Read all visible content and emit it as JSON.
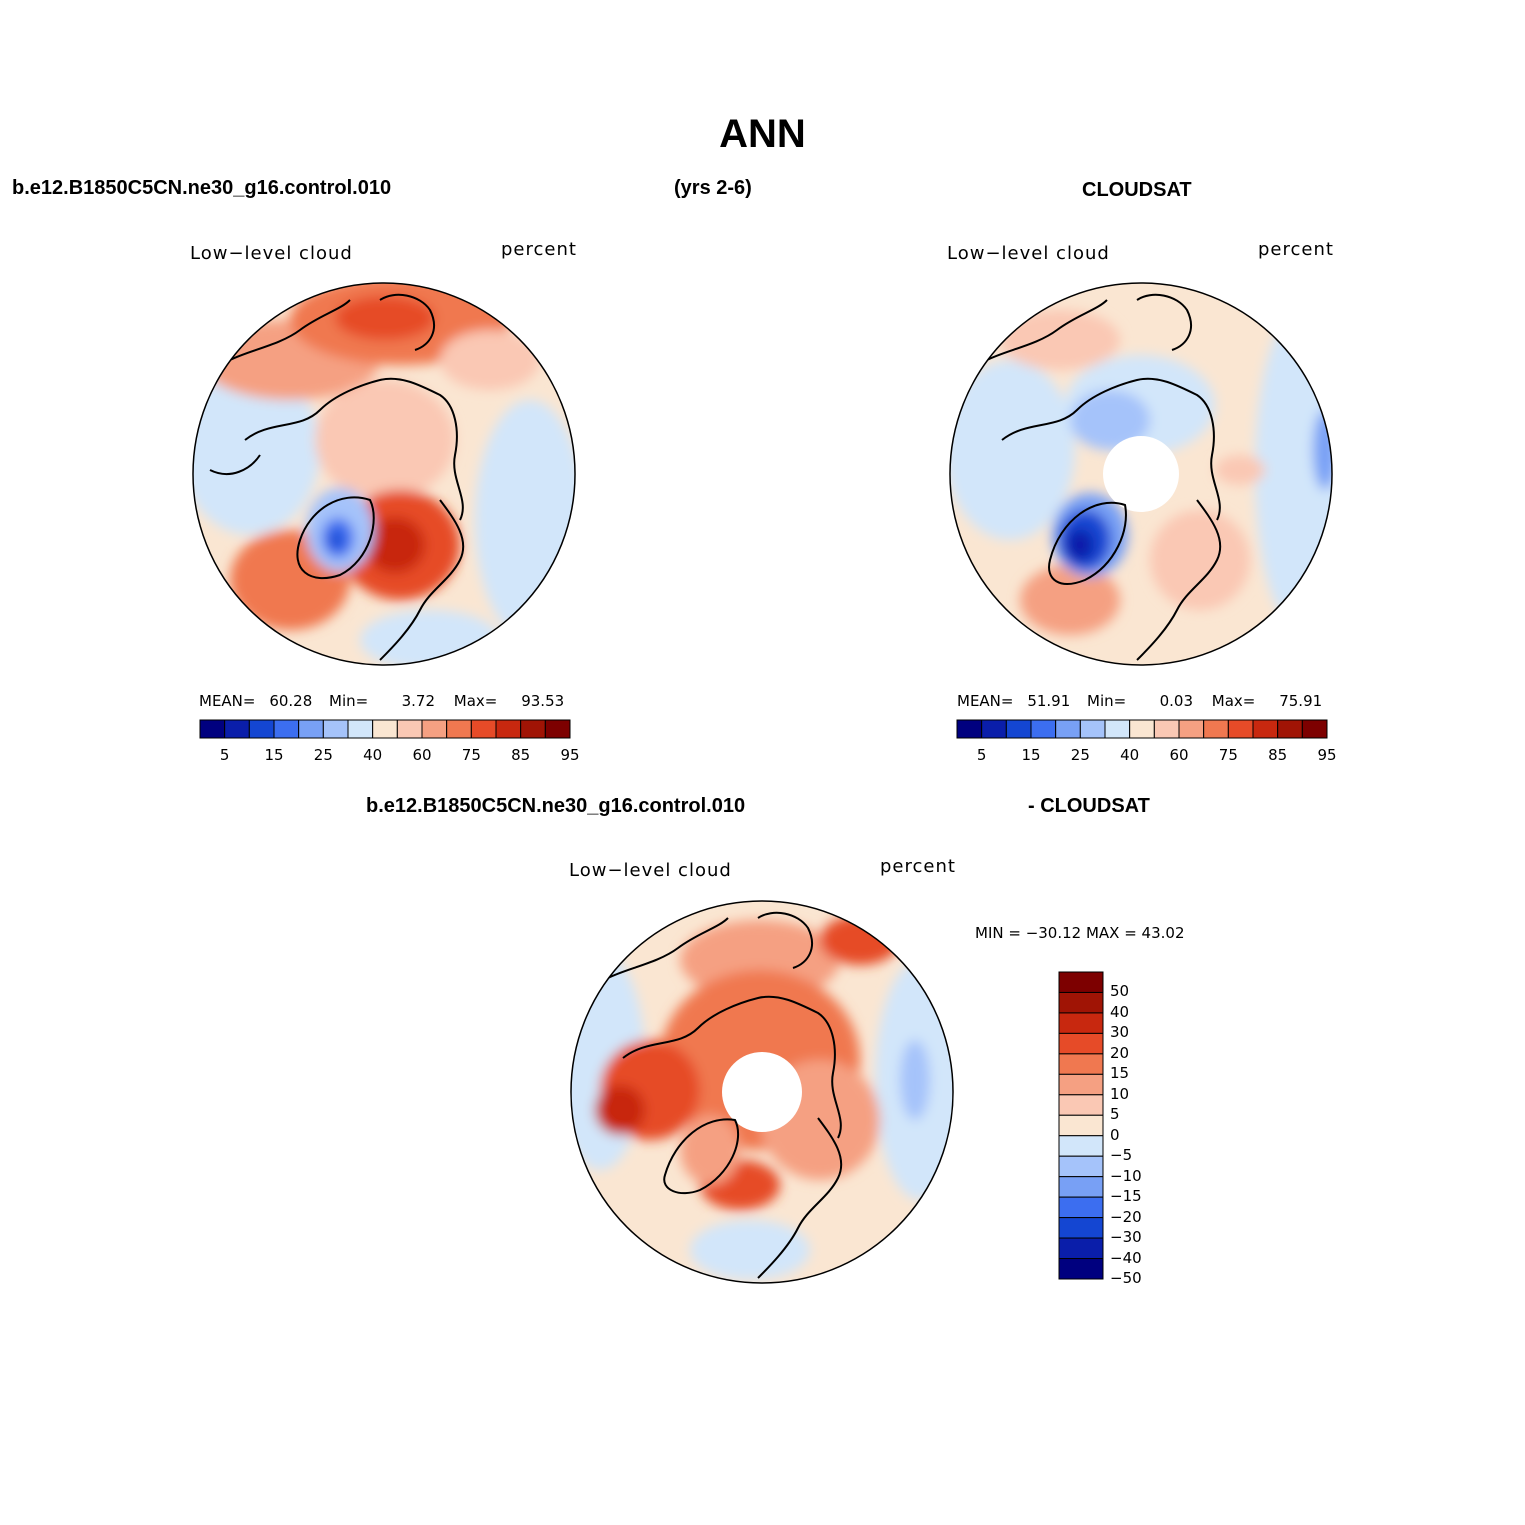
{
  "title": "ANN",
  "headers": {
    "top_left": "b.e12.B1850C5CN.ne30_g16.control.010",
    "top_center": "(yrs 2-6)",
    "top_right": "CLOUDSAT",
    "bottom_left": "b.e12.B1850C5CN.ne30_g16.control.010",
    "bottom_right": "- CLOUDSAT"
  },
  "panels": {
    "model": {
      "variable": "Low−level cloud",
      "units": "percent",
      "mean_label": "MEAN=",
      "mean": "60.28",
      "min_label": "Min=",
      "min": "3.72",
      "max_label": "Max=",
      "max": "93.53"
    },
    "obs": {
      "variable": "Low−level cloud",
      "units": "percent",
      "mean_label": "MEAN=",
      "mean": "51.91",
      "min_label": "Min=",
      "min": "0.03",
      "max_label": "Max=",
      "max": "75.91"
    },
    "diff": {
      "variable": "Low−level cloud",
      "units": "percent",
      "minmax": "MIN = −30.12 MAX =  43.02"
    }
  },
  "horizontal_colorbar": {
    "colors": [
      "#00007f",
      "#0a1eaa",
      "#1446d2",
      "#3c6ef0",
      "#78a0f5",
      "#a5c3fa",
      "#d2e6fa",
      "#fae6d2",
      "#fac8b4",
      "#f5a082",
      "#f07850",
      "#e64b28",
      "#c8280f",
      "#a01405",
      "#7d0000"
    ],
    "tick_labels": [
      "5",
      "15",
      "25",
      "40",
      "60",
      "75",
      "85",
      "95"
    ]
  },
  "vertical_colorbar": {
    "colors_top_to_bottom": [
      "#7d0000",
      "#a01405",
      "#c8280f",
      "#e64b28",
      "#f07850",
      "#f5a082",
      "#fac8b4",
      "#fae6d2",
      "#d2e6fa",
      "#a5c3fa",
      "#78a0f5",
      "#3c6ef0",
      "#1446d2",
      "#0a1eaa",
      "#00007f"
    ],
    "tick_labels_top_to_bottom": [
      "50",
      "40",
      "30",
      "20",
      "15",
      "10",
      "5",
      "0",
      "−5",
      "−10",
      "−15",
      "−20",
      "−30",
      "−40",
      "−50"
    ]
  }
}
